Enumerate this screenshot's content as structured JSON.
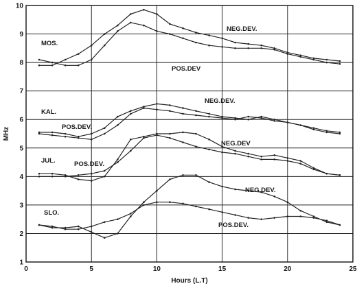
{
  "chart_data": {
    "type": "line",
    "xlabel": "Hours (L.T)",
    "ylabel": "MHz",
    "xlim": [
      0,
      25
    ],
    "ylim": [
      1,
      10
    ],
    "x_ticks": [
      0,
      5,
      10,
      15,
      20,
      25
    ],
    "y_ticks": [
      1,
      2,
      3,
      4,
      5,
      6,
      7,
      8,
      9,
      10
    ],
    "grid": true,
    "x": [
      1,
      2,
      3,
      4,
      5,
      6,
      7,
      8,
      9,
      10,
      11,
      12,
      13,
      14,
      15,
      16,
      17,
      18,
      19,
      20,
      21,
      22,
      23,
      24
    ],
    "stations": [
      {
        "label": "MOS.",
        "series": [
          {
            "name": "NEG.DEV.",
            "values": [
              7.9,
              7.9,
              8.1,
              8.3,
              8.6,
              9.0,
              9.3,
              9.7,
              9.85,
              9.7,
              9.35,
              9.2,
              9.05,
              8.95,
              8.85,
              8.7,
              8.65,
              8.6,
              8.5,
              8.35,
              8.25,
              8.15,
              8.1,
              8.05
            ]
          },
          {
            "name": "POS.DEV",
            "values": [
              8.1,
              8.0,
              7.9,
              7.9,
              8.1,
              8.6,
              9.1,
              9.4,
              9.3,
              9.1,
              9.0,
              8.85,
              8.7,
              8.6,
              8.55,
              8.5,
              8.5,
              8.5,
              8.45,
              8.3,
              8.2,
              8.1,
              8.0,
              7.95
            ]
          }
        ]
      },
      {
        "label": "KAL.",
        "series": [
          {
            "name": "NEG.DEV.",
            "values": [
              5.55,
              5.55,
              5.5,
              5.4,
              5.5,
              5.7,
              6.1,
              6.3,
              6.45,
              6.55,
              6.5,
              6.4,
              6.3,
              6.2,
              6.1,
              6.05,
              6.0,
              6.1,
              6.0,
              5.9,
              5.8,
              5.7,
              5.6,
              5.55
            ]
          },
          {
            "name": "POS.DEV.",
            "values": [
              5.5,
              5.45,
              5.4,
              5.35,
              5.3,
              5.5,
              5.8,
              6.2,
              6.4,
              6.35,
              6.3,
              6.2,
              6.15,
              6.1,
              6.05,
              6.0,
              6.1,
              6.05,
              5.95,
              5.9,
              5.8,
              5.65,
              5.55,
              5.5
            ]
          }
        ]
      },
      {
        "label": "JUL.",
        "series": [
          {
            "name": "NEG.DEV",
            "values": [
              4.1,
              4.1,
              4.05,
              3.9,
              3.85,
              4.0,
              4.6,
              5.3,
              5.4,
              5.5,
              5.5,
              5.55,
              5.5,
              5.3,
              5.05,
              4.9,
              4.8,
              4.7,
              4.75,
              4.65,
              4.55,
              4.3,
              4.1,
              4.05
            ]
          },
          {
            "name": "POS.DEV.",
            "values": [
              4.0,
              4.0,
              4.0,
              4.05,
              4.1,
              4.2,
              4.5,
              4.9,
              5.35,
              5.45,
              5.35,
              5.2,
              5.05,
              4.95,
              4.85,
              4.8,
              4.7,
              4.6,
              4.6,
              4.55,
              4.45,
              4.25,
              4.1,
              4.05
            ]
          }
        ]
      },
      {
        "label": "SLO.",
        "series": [
          {
            "name": "NEG.DEV.",
            "values": [
              2.3,
              2.2,
              2.2,
              2.25,
              2.05,
              1.85,
              2.0,
              2.6,
              3.1,
              3.5,
              3.9,
              4.05,
              4.05,
              3.8,
              3.65,
              3.55,
              3.5,
              3.45,
              3.3,
              3.1,
              2.8,
              2.6,
              2.4,
              2.3
            ]
          },
          {
            "name": "POS.DEV.",
            "values": [
              2.3,
              2.25,
              2.15,
              2.15,
              2.25,
              2.4,
              2.5,
              2.7,
              3.0,
              3.1,
              3.1,
              3.05,
              2.95,
              2.85,
              2.75,
              2.65,
              2.55,
              2.5,
              2.55,
              2.6,
              2.6,
              2.55,
              2.45,
              2.3
            ]
          }
        ]
      }
    ]
  }
}
